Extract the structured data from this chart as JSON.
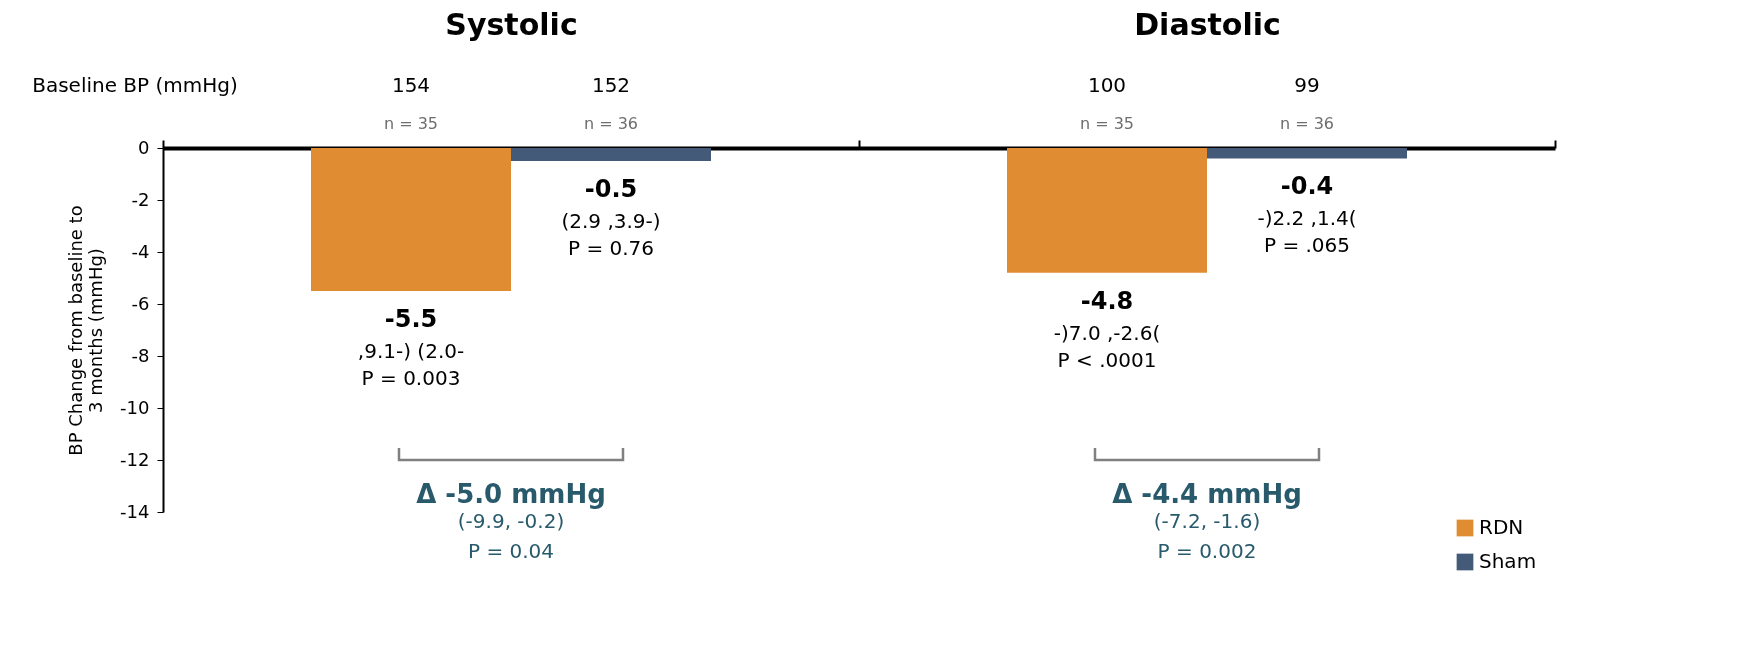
{
  "chart_data": {
    "type": "bar",
    "categories": [
      "Systolic",
      "Diastolic"
    ],
    "series": [
      {
        "name": "RDN",
        "color": "#e08c32",
        "values": [
          -5.5,
          -4.8
        ]
      },
      {
        "name": "Sham",
        "color": "#435a78",
        "values": [
          -0.5,
          -0.4
        ]
      }
    ],
    "ylabel": "BP Change from baseline to 3 months (mmHg)",
    "ylim": [
      -14,
      0
    ],
    "yticks": [
      0,
      -2,
      -4,
      -6,
      -8,
      -10,
      -12,
      -14
    ],
    "grid": false,
    "legend": "bottom right",
    "data_labels": true,
    "annotations": [
      "Baseline BP (mmHg)",
      "154",
      "152",
      "100",
      "99",
      "n = 35",
      "n = 36",
      "n = 35",
      "n = 36",
      "Δ -5.0 mmHg",
      "(-9.9, -0.2)",
      "P = 0.04",
      "Δ -4.4 mmHg",
      "(-7.2, -1.6)",
      "P = 0.002",
      ",9.1-) (2.0-",
      "P = 0.003",
      "(2.9 ,3.9-)",
      "P = 0.76",
      "-)7.0 ,-2.6(",
      "P < .0001",
      "-)2.2 ,1.4(",
      "P = .065"
    ]
  }
}
